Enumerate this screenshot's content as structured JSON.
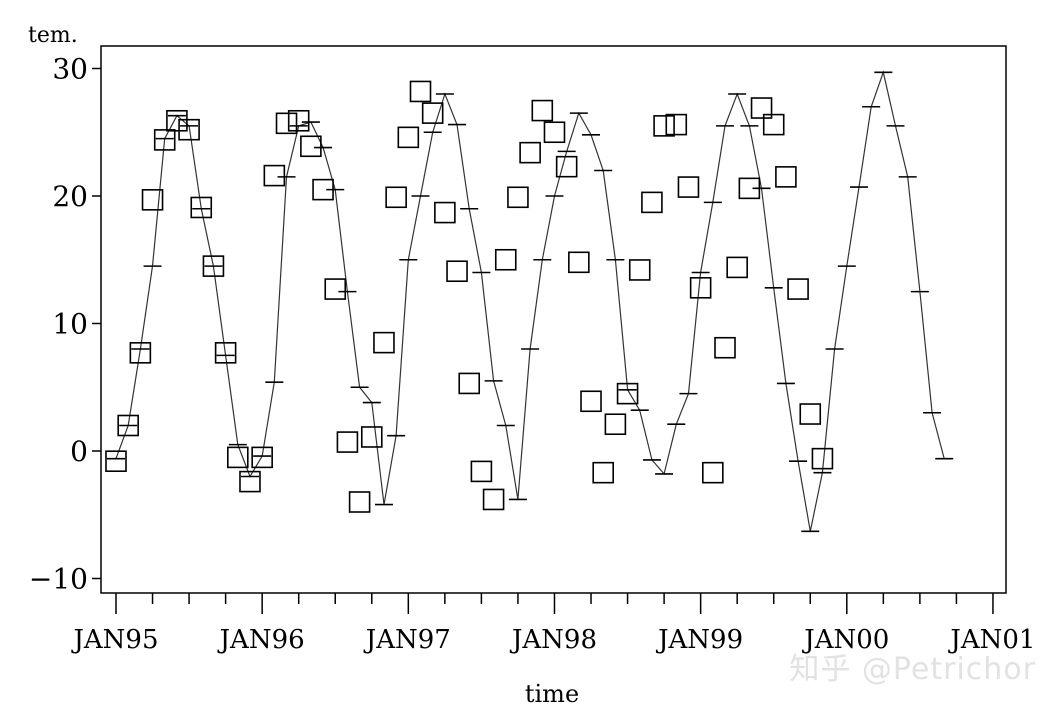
{
  "watermark": "知乎 @Petrichor",
  "chart_data": {
    "type": "line",
    "title": "",
    "xlabel": "time",
    "ylabel": "tem.",
    "ylim": [
      -11,
      31
    ],
    "yticks": [
      -10,
      0,
      10,
      20,
      30
    ],
    "ytick_labels": [
      "−10",
      "0",
      "10",
      "20",
      "30"
    ],
    "xtick_labels": [
      "JAN95",
      "JAN96",
      "JAN97",
      "JAN98",
      "JAN99",
      "JAN00",
      "JAN01"
    ],
    "xlim_months": [
      -1,
      73
    ],
    "grid": false,
    "series": [
      {
        "marker": "square",
        "values": [
          -0.8,
          2.0,
          7.7,
          19.7,
          24.4,
          25.9,
          25.2,
          19.1,
          14.5,
          7.7,
          -0.5,
          -2.4,
          -0.5,
          21.6,
          25.7,
          25.9,
          23.9,
          20.5,
          12.7,
          0.7,
          -4.0,
          1.1,
          8.5,
          19.9,
          24.6,
          28.2,
          26.5,
          18.7,
          14.1,
          5.3,
          -1.6,
          -3.8,
          15.0,
          19.9,
          23.4,
          26.7,
          25.0,
          22.3,
          14.8,
          3.9,
          -1.7,
          2.1,
          4.5,
          14.2,
          19.5,
          25.5,
          25.6,
          20.7,
          12.8,
          -1.7,
          8.1,
          14.4,
          20.6,
          26.9,
          25.6,
          21.5,
          12.7,
          2.9,
          -0.6
        ]
      },
      {
        "marker": "line-forecast",
        "values": [
          -0.6,
          2.0,
          8.0,
          14.5,
          24.5,
          26.3,
          25.5,
          19.0,
          14.5,
          7.5,
          0.5,
          -2.0,
          -0.4,
          5.4,
          21.5,
          25.5,
          25.8,
          23.8,
          20.5,
          12.5,
          5.0,
          3.8,
          -4.2,
          1.2,
          15.0,
          20.0,
          25.0,
          28.0,
          25.6,
          19.0,
          14.0,
          5.5,
          2.0,
          -3.8,
          8.0,
          15.0,
          20.0,
          23.5,
          26.5,
          24.8,
          22.0,
          15.0,
          4.8,
          3.2,
          -0.7,
          -1.8,
          2.1,
          4.5,
          14.0,
          19.5,
          25.5,
          28.0,
          25.5,
          20.6,
          12.8,
          5.3,
          -0.8,
          -6.3,
          -1.7,
          8.0,
          14.5,
          20.7,
          27.0,
          29.7,
          25.5,
          21.5,
          12.5,
          3.0,
          -0.6
        ]
      }
    ]
  }
}
